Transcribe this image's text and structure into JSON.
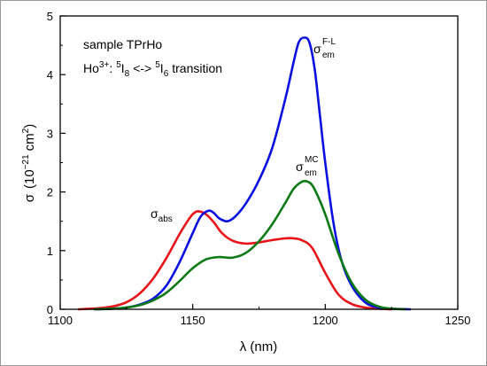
{
  "chart_data": {
    "type": "line",
    "xlabel": "λ (nm)",
    "ylabel": "σ (10⁻²¹ cm²)",
    "ylabel_parts": {
      "sym": "σ",
      "open": "(10",
      "exp": "−21",
      "unit": "cm",
      "uexp": "2",
      "close": ")"
    },
    "xlim": [
      1100,
      1250
    ],
    "ylim": [
      0,
      5
    ],
    "xticks": [
      1100,
      1150,
      1200,
      1250
    ],
    "yticks": [
      0,
      1,
      2,
      3,
      4,
      5
    ],
    "grid": false,
    "annotations": {
      "sample": "sample TPrHo",
      "ion": "Ho",
      "ion_charge": "3+",
      "colon": ":",
      "lvl1_pre": "5",
      "lvl1": "I",
      "lvl1_sub": "8",
      "arrow": "<->",
      "lvl2_pre": "5",
      "lvl2": "I",
      "lvl2_sub": "6",
      "transition": "transition"
    },
    "series": [
      {
        "label": "σabs",
        "label_parts": {
          "sym": "σ",
          "sub": "abs",
          "sup": ""
        },
        "color": "#e8141a",
        "x": [
          1107,
          1115,
          1120,
          1125,
          1130,
          1135,
          1140,
          1145,
          1148,
          1150,
          1152,
          1155,
          1158,
          1161,
          1165,
          1170,
          1175,
          1180,
          1185,
          1188,
          1191,
          1195,
          1200,
          1205,
          1210,
          1215,
          1220,
          1225
        ],
        "y": [
          0.0,
          0.02,
          0.05,
          0.12,
          0.27,
          0.52,
          0.87,
          1.28,
          1.5,
          1.62,
          1.67,
          1.62,
          1.48,
          1.3,
          1.17,
          1.12,
          1.14,
          1.18,
          1.21,
          1.21,
          1.18,
          1.05,
          0.62,
          0.25,
          0.09,
          0.03,
          0.01,
          0.0
        ]
      },
      {
        "label": "σemF-L",
        "label_parts": {
          "sym": "σ",
          "sub": "em",
          "sup": "F-L"
        },
        "color": "#0a10e0",
        "x": [
          1113,
          1120,
          1125,
          1130,
          1135,
          1140,
          1145,
          1150,
          1153,
          1156,
          1158,
          1160,
          1163,
          1166,
          1170,
          1175,
          1180,
          1185,
          1188,
          1190,
          1192,
          1194,
          1196,
          1198,
          1200,
          1203,
          1206,
          1210,
          1215,
          1220,
          1225,
          1232
        ],
        "y": [
          0.0,
          0.01,
          0.03,
          0.08,
          0.18,
          0.4,
          0.8,
          1.3,
          1.58,
          1.68,
          1.64,
          1.55,
          1.5,
          1.58,
          1.8,
          2.2,
          2.75,
          3.6,
          4.2,
          4.55,
          4.63,
          4.55,
          4.1,
          3.3,
          2.5,
          1.5,
          0.85,
          0.4,
          0.12,
          0.03,
          0.01,
          0.0
        ]
      },
      {
        "label": "σemMC",
        "label_parts": {
          "sym": "σ",
          "sub": "em",
          "sup": "MC"
        },
        "color": "#0c7a14",
        "x": [
          1113,
          1120,
          1125,
          1130,
          1135,
          1140,
          1145,
          1150,
          1155,
          1160,
          1165,
          1170,
          1175,
          1180,
          1185,
          1188,
          1191,
          1193,
          1195,
          1197,
          1200,
          1205,
          1210,
          1215,
          1220,
          1225,
          1230
        ],
        "y": [
          0.0,
          0.01,
          0.03,
          0.07,
          0.15,
          0.28,
          0.48,
          0.7,
          0.85,
          0.89,
          0.88,
          0.96,
          1.16,
          1.45,
          1.82,
          2.05,
          2.17,
          2.18,
          2.12,
          1.95,
          1.62,
          0.95,
          0.45,
          0.17,
          0.05,
          0.01,
          0.0
        ]
      }
    ]
  }
}
